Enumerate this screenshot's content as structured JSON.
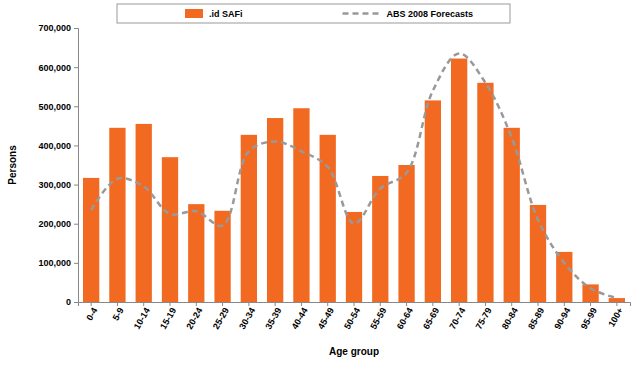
{
  "chart_data": {
    "type": "bar",
    "x_label": "Age group",
    "y_label": "Persons",
    "categories": [
      "0-4",
      "5-9",
      "10-14",
      "15-19",
      "20-24",
      "25-29",
      "30-34",
      "35-39",
      "40-44",
      "45-49",
      "50-54",
      "55-59",
      "60-64",
      "65-69",
      "70-74",
      "75-79",
      "80-84",
      "85-89",
      "90-94",
      "95-99",
      "100+"
    ],
    "series": [
      {
        "name": ".id SAFi",
        "type": "bar",
        "color": "#f26a21",
        "values": [
          317000,
          445000,
          455000,
          370000,
          250000,
          233000,
          427000,
          470000,
          495000,
          427000,
          230000,
          322000,
          350000,
          515000,
          622000,
          560000,
          445000,
          248000,
          128000,
          45000,
          10000
        ]
      },
      {
        "name": "ABS 2008 Forecasts",
        "type": "line",
        "line_style": "dashed",
        "color": "#999999",
        "values": [
          235000,
          315000,
          295000,
          225000,
          232000,
          195000,
          385000,
          410000,
          385000,
          345000,
          200000,
          290000,
          330000,
          540000,
          635000,
          560000,
          420000,
          210000,
          100000,
          35000,
          10000
        ]
      }
    ],
    "ylim": [
      0,
      700000
    ],
    "yticks": [
      0,
      {
        "value": 100000,
        "label": "100,000"
      },
      {
        "value": 200000,
        "label": "200,000"
      },
      {
        "value": 300000,
        "label": "300,000"
      },
      {
        "value": 400000,
        "label": "400,000"
      },
      {
        "value": 500000,
        "label": "500,000"
      },
      {
        "value": 600000,
        "label": "600,000"
      },
      {
        "value": 700000,
        "label": "700,000"
      }
    ],
    "grid": false,
    "legend": "top"
  }
}
